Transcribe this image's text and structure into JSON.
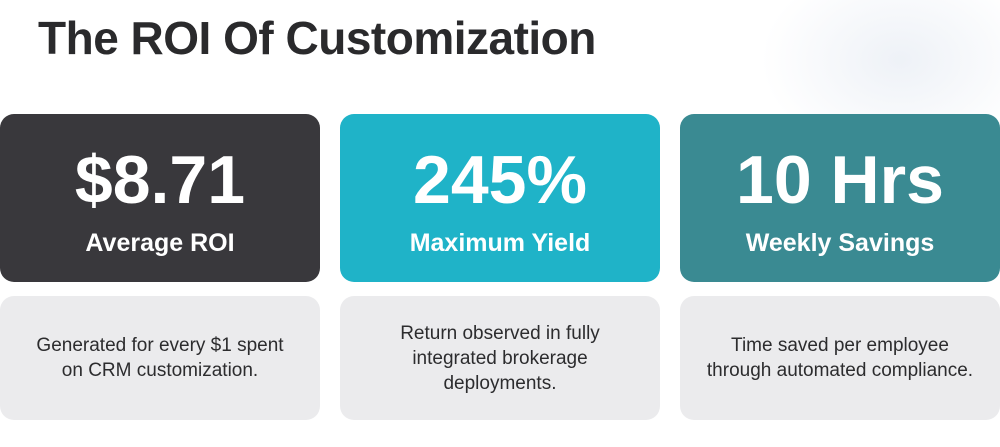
{
  "title": "The ROI Of Customization",
  "colors": {
    "card_dark": "#39383c",
    "card_cyan": "#1fb3c8",
    "card_teal": "#3a8a92",
    "desc_bg": "#ebebed",
    "title_text": "#2a2a2c"
  },
  "cards": [
    {
      "value": "$8.71",
      "label": "Average ROI",
      "description": "Generated for every $1 spent on CRM customization.",
      "color": "#39383c"
    },
    {
      "value": "245%",
      "label": "Maximum Yield",
      "description": "Return observed in fully integrated brokerage deployments.",
      "color": "#1fb3c8"
    },
    {
      "value": "10 Hrs",
      "label": "Weekly Savings",
      "description": "Time saved per employee through automated compliance.",
      "color": "#3a8a92"
    }
  ]
}
